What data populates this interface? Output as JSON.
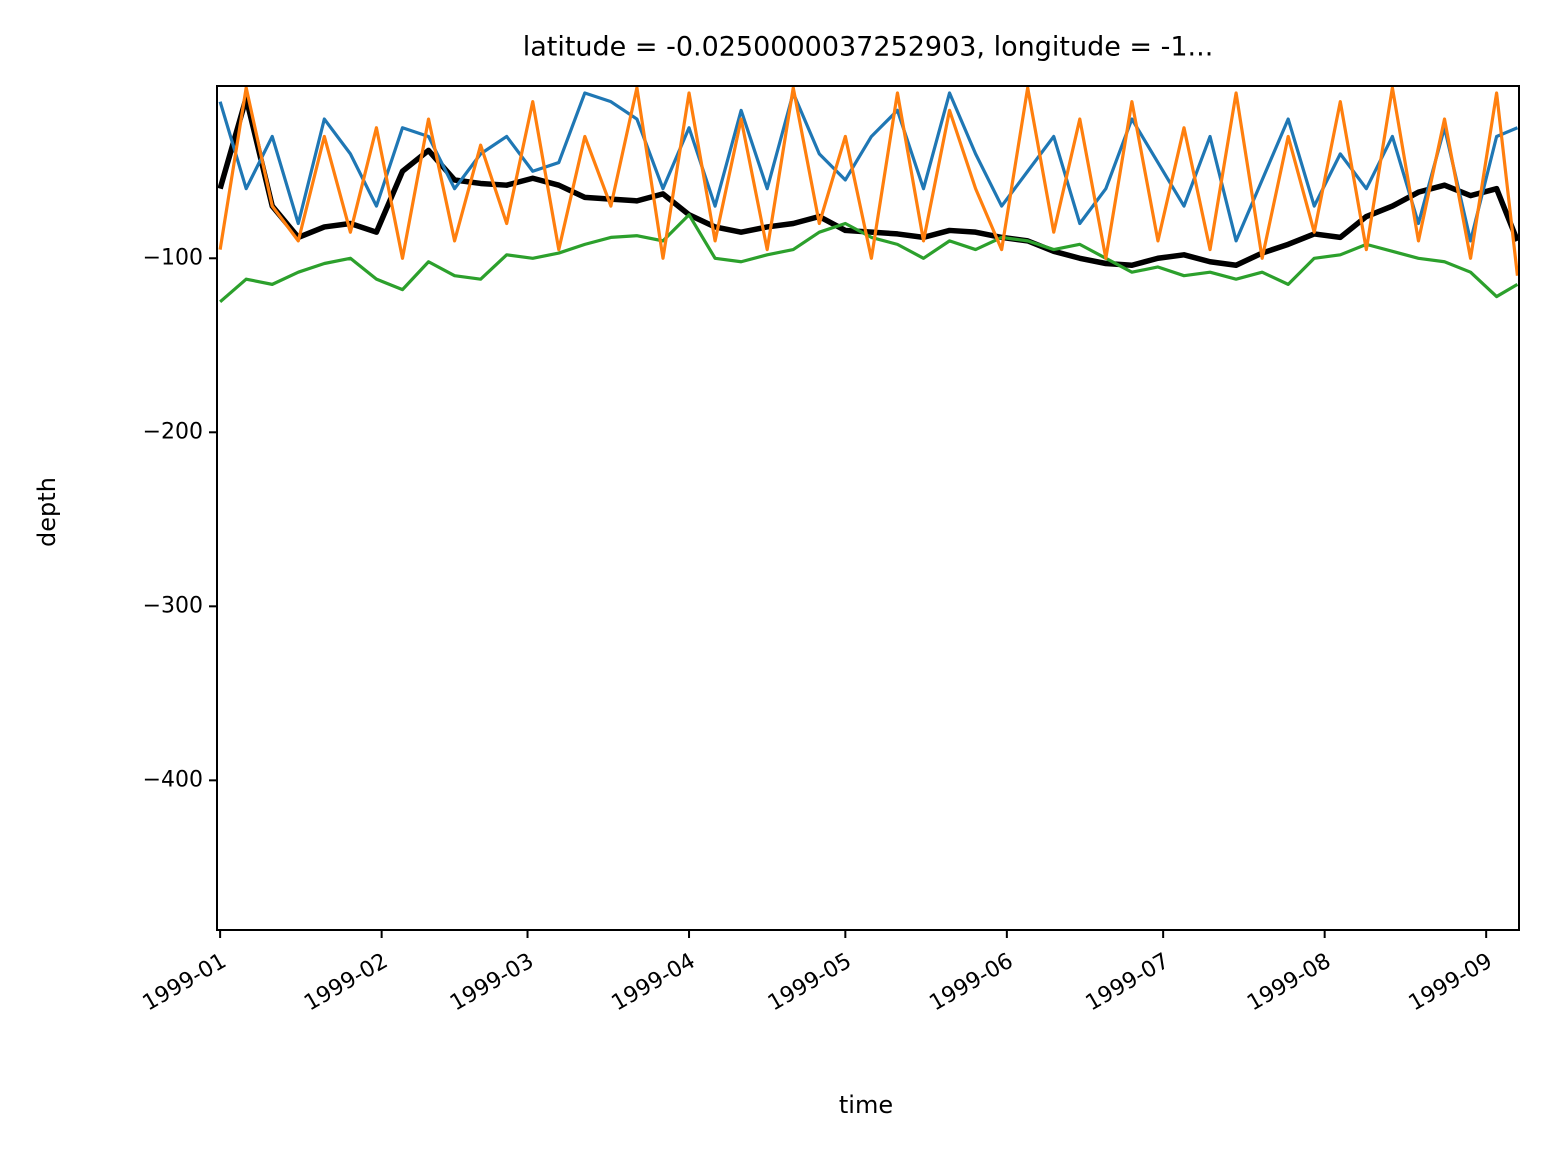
{
  "chart_data": {
    "type": "line",
    "title": "latitude = -0.0250000037252903, longitude = -1...",
    "x_label": "time",
    "y_label": "depth",
    "x": [
      0,
      5,
      10,
      15,
      20,
      25,
      30,
      35,
      40,
      45,
      50,
      55,
      60,
      65,
      70,
      75,
      80,
      85,
      90,
      95,
      100,
      105,
      110,
      115,
      120,
      125,
      130,
      135,
      140,
      145,
      150,
      155,
      160,
      165,
      170,
      175,
      180,
      185,
      190,
      195,
      200,
      205,
      210,
      215,
      220,
      225,
      230,
      235,
      240,
      245,
      249
    ],
    "xlim": [
      -0.6,
      249.3
    ],
    "xticks": [
      {
        "value": 0,
        "label": "1999-01"
      },
      {
        "value": 31,
        "label": "1999-02"
      },
      {
        "value": 59,
        "label": "1999-03"
      },
      {
        "value": 90,
        "label": "1999-04"
      },
      {
        "value": 120,
        "label": "1999-05"
      },
      {
        "value": 151,
        "label": "1999-06"
      },
      {
        "value": 181,
        "label": "1999-07"
      },
      {
        "value": 212,
        "label": "1999-08"
      },
      {
        "value": 243,
        "label": "1999-09"
      }
    ],
    "ylim": [
      -486,
      -1
    ],
    "yticks": [
      {
        "value": -100,
        "label": "−100"
      },
      {
        "value": -200,
        "label": "−200"
      },
      {
        "value": -300,
        "label": "−300"
      },
      {
        "value": -400,
        "label": "−400"
      }
    ],
    "grid": false,
    "series": [
      {
        "color": "#000000",
        "values": [
          -60,
          -8,
          -70,
          -88,
          -82,
          -80,
          -85,
          -50,
          -38,
          -55,
          -57,
          -58,
          -54,
          -58,
          -65,
          -66,
          -67,
          -63,
          -75,
          -82,
          -85,
          -82,
          -80,
          -76,
          -84,
          -85,
          -86,
          -88,
          -84,
          -85,
          -88,
          -90,
          -96,
          -100,
          -103,
          -104,
          -100,
          -98,
          -102,
          -104,
          -97,
          -92,
          -86,
          -88,
          -76,
          -70,
          -62,
          -58,
          -64,
          -60,
          -90
        ]
      },
      {
        "color": "#1f77b4",
        "values": [
          -10,
          -60,
          -30,
          -80,
          -20,
          -40,
          -70,
          -25,
          -30,
          -60,
          -40,
          -30,
          -50,
          -45,
          -5,
          -10,
          -20,
          -60,
          -25,
          -70,
          -15,
          -60,
          -5,
          -40,
          -55,
          -30,
          -15,
          -60,
          -5,
          -40,
          -70,
          -50,
          -30,
          -80,
          -60,
          -20,
          -45,
          -70,
          -30,
          -90,
          -55,
          -20,
          -70,
          -40,
          -60,
          -30,
          -80,
          -25,
          -90,
          -30,
          -25
        ]
      },
      {
        "color": "#2ca02c",
        "values": [
          -125,
          -112,
          -115,
          -108,
          -103,
          -100,
          -112,
          -118,
          -102,
          -110,
          -112,
          -98,
          -100,
          -97,
          -92,
          -88,
          -87,
          -90,
          -75,
          -100,
          -102,
          -98,
          -95,
          -85,
          -80,
          -88,
          -92,
          -100,
          -90,
          -95,
          -88,
          -90,
          -95,
          -92,
          -100,
          -108,
          -105,
          -110,
          -108,
          -112,
          -108,
          -115,
          -100,
          -98,
          -92,
          -96,
          -100,
          -102,
          -108,
          -122,
          -115
        ]
      },
      {
        "color": "#ff7f0e",
        "values": [
          -95,
          -2,
          -70,
          -90,
          -30,
          -85,
          -25,
          -100,
          -20,
          -90,
          -35,
          -80,
          -10,
          -95,
          -30,
          -70,
          -2,
          -100,
          -5,
          -90,
          -20,
          -95,
          -2,
          -80,
          -30,
          -100,
          -5,
          -90,
          -15,
          -60,
          -95,
          -2,
          -85,
          -20,
          -100,
          -10,
          -90,
          -25,
          -95,
          -5,
          -100,
          -30,
          -85,
          -10,
          -95,
          -2,
          -90,
          -20,
          -100,
          -5,
          -110
        ]
      }
    ]
  }
}
